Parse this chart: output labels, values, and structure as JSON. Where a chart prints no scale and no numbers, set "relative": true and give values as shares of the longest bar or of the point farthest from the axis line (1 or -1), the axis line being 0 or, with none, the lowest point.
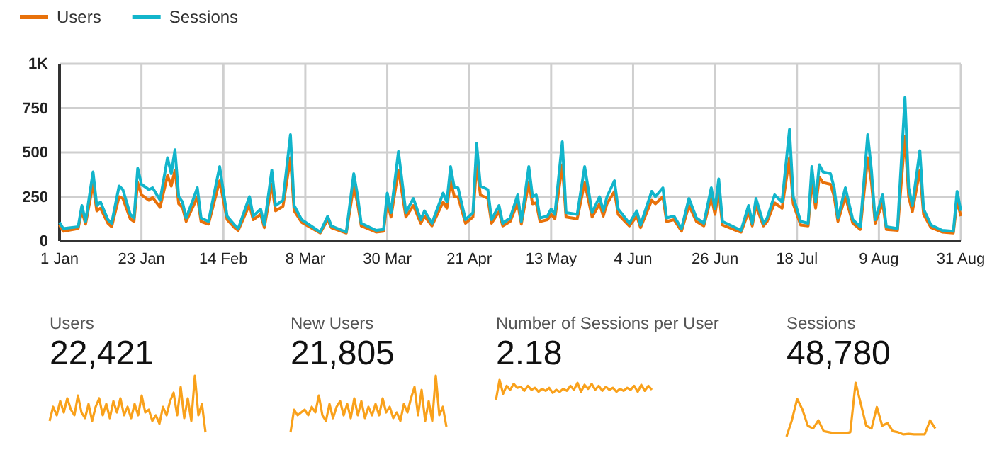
{
  "chart_data": [
    {
      "type": "line",
      "x": [
        "--01-01",
        "--01-02",
        "--01-06",
        "--01-07",
        "--01-08",
        "--01-10",
        "--01-11",
        "--01-12",
        "--01-14",
        "--01-15",
        "--01-17",
        "--01-18",
        "--01-20",
        "--01-21",
        "--01-22",
        "--01-23",
        "--01-25",
        "--01-26",
        "--01-28",
        "--01-30",
        "--01-31",
        "--02-01",
        "--02-02",
        "--02-03",
        "--02-04",
        "--02-06",
        "--02-07",
        "--02-08",
        "--02-10",
        "--02-13",
        "--02-15",
        "--02-17",
        "--02-18",
        "--02-21",
        "--02-22",
        "--02-24",
        "--02-25",
        "--02-27",
        "--02-28",
        "--03-02",
        "--03-04",
        "--03-05",
        "--03-07",
        "--03-12",
        "--03-14",
        "--03-15",
        "--03-19",
        "--03-21",
        "--03-22",
        "--03-23",
        "--03-27",
        "--03-29",
        "--03-30",
        "--03-31",
        "--04-02",
        "--04-04",
        "--04-06",
        "--04-08",
        "--04-09",
        "--04-11",
        "--04-14",
        "--04-15",
        "--04-16",
        "--04-17",
        "--04-18",
        "--04-20",
        "--04-22",
        "--04-23",
        "--04-24",
        "--04-26",
        "--04-27",
        "--04-29",
        "--04-30",
        "--05-02",
        "--05-04",
        "--05-05",
        "--05-07",
        "--05-08",
        "--05-09",
        "--05-10",
        "--05-12",
        "--05-13",
        "--05-14",
        "--05-16",
        "--05-17",
        "--05-20",
        "--05-22",
        "--05-24",
        "--05-26",
        "--05-27",
        "--05-28",
        "--05-30",
        "--05-31",
        "--06-03",
        "--06-05",
        "--06-06",
        "--06-09",
        "--06-10",
        "--06-12",
        "--06-13",
        "--06-15",
        "--06-17",
        "--06-19",
        "--06-21",
        "--06-23",
        "--06-25",
        "--06-26",
        "--06-27",
        "--06-28",
        "--07-01",
        "--07-03",
        "--07-05",
        "--07-06",
        "--07-07",
        "--07-09",
        "--07-10",
        "--07-12",
        "--07-14",
        "--07-16",
        "--07-17",
        "--07-19",
        "--07-21",
        "--07-22",
        "--07-23",
        "--07-24",
        "--07-25",
        "--07-27",
        "--07-28",
        "--07-29",
        "--07-31",
        "--08-02",
        "--08-04",
        "--08-06",
        "--08-07",
        "--08-08",
        "--08-10",
        "--08-11",
        "--08-14",
        "--08-16",
        "--08-17",
        "--08-18",
        "--08-20",
        "--08-21",
        "--08-23",
        "--08-26",
        "--08-29",
        "--08-30",
        "--08-31"
      ],
      "series": [
        {
          "name": "Users",
          "color": "#e8710a",
          "values": [
            90,
            55,
            70,
            170,
            95,
            320,
            170,
            185,
            100,
            80,
            250,
            240,
            125,
            110,
            330,
            260,
            230,
            245,
            190,
            370,
            310,
            400,
            210,
            190,
            110,
            200,
            250,
            110,
            95,
            340,
            120,
            75,
            60,
            205,
            120,
            150,
            75,
            320,
            170,
            195,
            470,
            170,
            105,
            45,
            120,
            75,
            45,
            310,
            215,
            85,
            50,
            55,
            220,
            135,
            400,
            135,
            200,
            100,
            140,
            85,
            220,
            185,
            340,
            250,
            250,
            100,
            135,
            430,
            260,
            240,
            100,
            165,
            85,
            110,
            215,
            95,
            330,
            210,
            215,
            110,
            120,
            150,
            125,
            430,
            135,
            125,
            330,
            135,
            210,
            140,
            210,
            280,
            150,
            85,
            140,
            75,
            230,
            210,
            250,
            110,
            120,
            55,
            200,
            110,
            85,
            250,
            150,
            280,
            90,
            65,
            50,
            165,
            85,
            200,
            85,
            110,
            215,
            185,
            470,
            210,
            90,
            85,
            340,
            185,
            360,
            330,
            320,
            250,
            110,
            250,
            100,
            65,
            470,
            330,
            100,
            215,
            65,
            60,
            590,
            250,
            165,
            400,
            150,
            75,
            50,
            45,
            230,
            140
          ]
        },
        {
          "name": "Sessions",
          "color": "#12b5cb",
          "values": [
            105,
            70,
            80,
            200,
            110,
            390,
            200,
            220,
            120,
            100,
            310,
            290,
            150,
            130,
            410,
            320,
            290,
            300,
            230,
            470,
            380,
            515,
            250,
            220,
            130,
            240,
            300,
            130,
            110,
            420,
            140,
            90,
            70,
            250,
            140,
            180,
            90,
            400,
            200,
            230,
            600,
            200,
            120,
            50,
            140,
            85,
            50,
            380,
            260,
            100,
            60,
            65,
            270,
            160,
            505,
            160,
            240,
            120,
            170,
            100,
            270,
            220,
            420,
            300,
            300,
            120,
            160,
            550,
            310,
            290,
            120,
            200,
            100,
            130,
            260,
            110,
            420,
            250,
            260,
            130,
            140,
            180,
            150,
            560,
            160,
            150,
            420,
            160,
            250,
            170,
            250,
            340,
            180,
            100,
            170,
            90,
            280,
            250,
            300,
            130,
            140,
            70,
            240,
            130,
            100,
            300,
            180,
            350,
            110,
            80,
            60,
            200,
            100,
            240,
            100,
            130,
            260,
            220,
            630,
            250,
            110,
            100,
            420,
            220,
            430,
            390,
            380,
            300,
            130,
            300,
            120,
            80,
            600,
            400,
            120,
            260,
            80,
            70,
            810,
            300,
            200,
            510,
            180,
            90,
            60,
            55,
            280,
            170
          ]
        }
      ],
      "xlim": [
        "--01-01",
        "--08-31"
      ],
      "xticks": [
        {
          "value": "--01-01",
          "label": "1 Jan"
        },
        {
          "value": "--01-23",
          "label": "23 Jan"
        },
        {
          "value": "--02-14",
          "label": "14 Feb"
        },
        {
          "value": "--03-08",
          "label": "8 Mar"
        },
        {
          "value": "--03-30",
          "label": "30 Mar"
        },
        {
          "value": "--04-21",
          "label": "21 Apr"
        },
        {
          "value": "--05-13",
          "label": "13 May"
        },
        {
          "value": "--06-04",
          "label": "4 Jun"
        },
        {
          "value": "--06-26",
          "label": "26 Jun"
        },
        {
          "value": "--07-18",
          "label": "18 Jul"
        },
        {
          "value": "--08-09",
          "label": "9 Aug"
        },
        {
          "value": "--08-31",
          "label": "31 Aug"
        }
      ],
      "ylim": [
        0,
        1000
      ],
      "yticks": [
        0,
        250,
        500,
        750,
        {
          "value": 1000,
          "label": "1K"
        }
      ],
      "grid": true,
      "legend": "top left",
      "marker": "none",
      "line_style": "solid"
    },
    {
      "type": "line",
      "relative": true,
      "title": "Users",
      "annotations": [
        "22,421"
      ],
      "color": "#f9a11b",
      "categories": [
        null,
        null,
        null,
        null,
        null,
        null,
        null,
        null,
        null,
        null,
        null,
        null,
        null,
        null,
        null,
        null,
        null,
        null,
        null,
        null,
        null,
        null,
        null,
        null,
        null,
        null,
        null,
        null,
        null,
        null,
        null,
        null,
        null,
        null,
        null,
        null,
        null,
        null,
        null,
        null,
        null,
        null,
        null,
        null,
        null
      ],
      "values": [
        0.2,
        0.45,
        0.3,
        0.55,
        0.35,
        0.6,
        0.4,
        0.3,
        0.65,
        0.35,
        0.25,
        0.5,
        0.2,
        0.45,
        0.6,
        0.3,
        0.5,
        0.25,
        0.55,
        0.35,
        0.6,
        0.3,
        0.45,
        0.25,
        0.5,
        0.3,
        0.65,
        0.35,
        0.4,
        0.2,
        0.3,
        0.15,
        0.45,
        0.3,
        0.55,
        0.7,
        0.3,
        0.8,
        0.25,
        0.6,
        0.2,
        1,
        0.3,
        0.5,
        0
      ]
    },
    {
      "type": "line",
      "relative": true,
      "title": "New Users",
      "annotations": [
        "21,805"
      ],
      "color": "#f9a11b",
      "categories": [
        null,
        null,
        null,
        null,
        null,
        null,
        null,
        null,
        null,
        null,
        null,
        null,
        null,
        null,
        null,
        null,
        null,
        null,
        null,
        null,
        null,
        null,
        null,
        null,
        null,
        null,
        null,
        null,
        null,
        null,
        null,
        null,
        null,
        null,
        null,
        null,
        null,
        null,
        null,
        null,
        null,
        null,
        null,
        null,
        null
      ],
      "values": [
        0,
        0.4,
        0.3,
        0.35,
        0.4,
        0.3,
        0.45,
        0.35,
        0.65,
        0.3,
        0.2,
        0.5,
        0.25,
        0.45,
        0.55,
        0.3,
        0.5,
        0.25,
        0.6,
        0.3,
        0.55,
        0.25,
        0.45,
        0.3,
        0.5,
        0.3,
        0.6,
        0.35,
        0.45,
        0.25,
        0.35,
        0.2,
        0.5,
        0.35,
        0.6,
        0.8,
        0.3,
        0.75,
        0.2,
        0.55,
        0.2,
        1,
        0.3,
        0.45,
        0.1
      ]
    },
    {
      "type": "line",
      "relative": true,
      "title": "Number of Sessions per User",
      "annotations": [
        "2.18"
      ],
      "color": "#f9a11b",
      "categories": [
        null,
        null,
        null,
        null,
        null,
        null,
        null,
        null,
        null,
        null,
        null,
        null,
        null,
        null,
        null,
        null,
        null,
        null,
        null,
        null,
        null,
        null,
        null,
        null,
        null,
        null,
        null,
        null,
        null,
        null,
        null,
        null,
        null,
        null,
        null,
        null,
        null,
        null,
        null,
        null,
        null,
        null,
        null,
        null,
        null
      ],
      "values": [
        0,
        1,
        0.3,
        0.7,
        0.5,
        0.8,
        0.6,
        0.65,
        0.45,
        0.7,
        0.5,
        0.6,
        0.4,
        0.55,
        0.45,
        0.6,
        0.35,
        0.5,
        0.4,
        0.55,
        0.45,
        0.7,
        0.5,
        0.85,
        0.4,
        0.75,
        0.55,
        0.8,
        0.5,
        0.7,
        0.45,
        0.65,
        0.5,
        0.6,
        0.4,
        0.55,
        0.45,
        0.6,
        0.5,
        0.7,
        0.4,
        0.75,
        0.45,
        0.7,
        0.5
      ]
    },
    {
      "type": "line",
      "relative": true,
      "title": "Sessions",
      "annotations": [
        "48,780"
      ],
      "color": "#f9a11b",
      "categories": [
        null,
        null,
        null,
        null,
        null,
        null,
        null,
        null,
        null,
        null,
        null,
        null,
        null,
        null,
        null,
        null,
        null,
        null,
        null,
        null,
        null,
        null,
        null,
        null,
        null,
        null,
        null,
        null,
        null
      ],
      "values": [
        0,
        0.3,
        0.7,
        0.5,
        0.2,
        0.15,
        0.3,
        0.1,
        0.08,
        0.06,
        0.06,
        0.06,
        0.08,
        1,
        0.6,
        0.2,
        0.15,
        0.55,
        0.2,
        0.25,
        0.1,
        0.08,
        0.04,
        0.05,
        0.04,
        0.04,
        0.04,
        0.3,
        0.15
      ]
    }
  ]
}
